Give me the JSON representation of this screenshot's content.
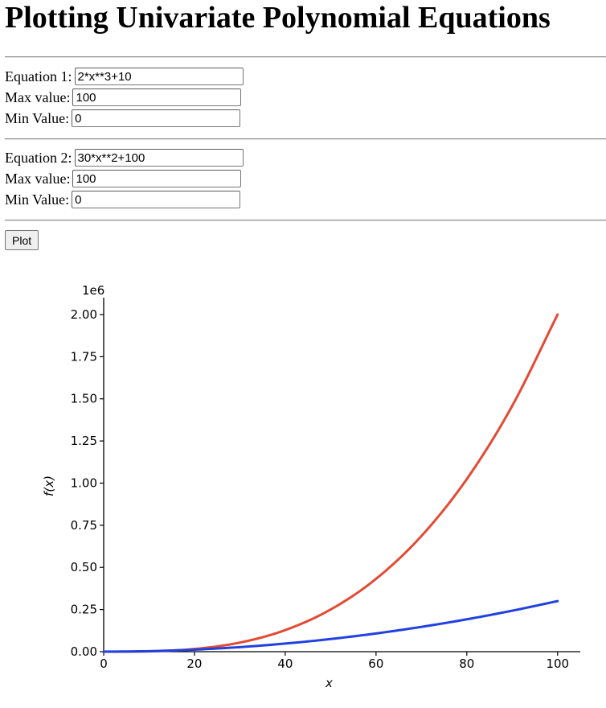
{
  "page": {
    "title": "Plotting Univariate Polynomial Equations"
  },
  "equation1": {
    "equation_label": "Equation 1:",
    "equation_value": "2*x**3+10",
    "max_label": "Max value:",
    "max_value": "100",
    "min_label": "Min Value:",
    "min_value": "0"
  },
  "equation2": {
    "equation_label": "Equation 2:",
    "equation_value": "30*x**2+100",
    "max_label": "Max value:",
    "max_value": "100",
    "min_label": "Min Value:",
    "min_value": "0"
  },
  "plot_button_label": "Plot",
  "chart_data": {
    "type": "line",
    "title": "",
    "xlabel": "x",
    "ylabel": "f(x)",
    "y_offset_label": "1e6",
    "xlim": [
      0,
      105
    ],
    "ylim": [
      0,
      2100000
    ],
    "x_ticks": [
      0,
      20,
      40,
      60,
      80,
      100
    ],
    "x_tick_labels": [
      "0",
      "20",
      "40",
      "60",
      "80",
      "100"
    ],
    "y_ticks": [
      0,
      250000,
      500000,
      750000,
      1000000,
      1250000,
      1500000,
      1750000,
      2000000
    ],
    "y_tick_labels": [
      "0.00",
      "0.25",
      "0.50",
      "0.75",
      "1.00",
      "1.25",
      "1.50",
      "1.75",
      "2.00"
    ],
    "grid": false,
    "series": [
      {
        "color": "#e34a33",
        "x": [
          0,
          10,
          20,
          30,
          40,
          50,
          60,
          70,
          80,
          90,
          100
        ],
        "y": [
          10,
          2010,
          16010,
          54010,
          128010,
          250010,
          432010,
          686010,
          1024010,
          1458010,
          2000010
        ]
      },
      {
        "color": "#2140e0",
        "x": [
          0,
          10,
          20,
          30,
          40,
          50,
          60,
          70,
          80,
          90,
          100
        ],
        "y": [
          100,
          3100,
          12100,
          27100,
          48100,
          75100,
          108100,
          147100,
          192100,
          243100,
          300100
        ]
      }
    ]
  }
}
